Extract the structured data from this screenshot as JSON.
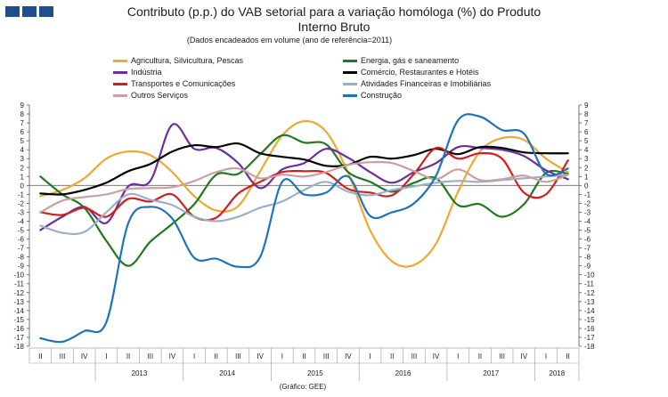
{
  "header": {
    "title_line1": "Contributo (p.p.) do VAB setorial para a variação homóloga (%) do Produto",
    "title_line2": "Interno Bruto",
    "subtitle": "(Dados encadeados em volume (ano de referência=2011)"
  },
  "source": "(Gráfico: GEE)",
  "chart_data": {
    "type": "line",
    "title": "Contributo (p.p.) do VAB setorial para a variação homóloga (%) do Produto Interno Bruto",
    "ylim": [
      -18,
      9
    ],
    "yticks": [
      9,
      8,
      7,
      6,
      5,
      4,
      3,
      2,
      1,
      0,
      -1,
      -2,
      -3,
      -4,
      -5,
      -6,
      -7,
      -8,
      -9,
      -10,
      -11,
      -12,
      -13,
      -14,
      -15,
      -16,
      -17,
      -18
    ],
    "quarters": [
      "II",
      "III",
      "IV",
      "I",
      "II",
      "III",
      "IV",
      "I",
      "II",
      "III",
      "IV",
      "I",
      "II",
      "III",
      "IV",
      "I",
      "II",
      "III",
      "IV",
      "I",
      "II",
      "III",
      "IV",
      "I",
      "II"
    ],
    "years": [
      {
        "label": "2013",
        "start": 3,
        "count": 4
      },
      {
        "label": "2014",
        "start": 7,
        "count": 4
      },
      {
        "label": "2015",
        "start": 11,
        "count": 4
      },
      {
        "label": "2016",
        "start": 15,
        "count": 4
      },
      {
        "label": "2017",
        "start": 19,
        "count": 4
      },
      {
        "label": "2018",
        "start": 23,
        "count": 2
      }
    ],
    "series": [
      {
        "name": "Agricultura, Silvicultura, Pescas",
        "color": "#f0a830",
        "values": [
          -1.2,
          -0.5,
          0.8,
          3.0,
          3.8,
          3.4,
          1.5,
          -1.2,
          -2.8,
          -2.3,
          1.6,
          5.6,
          7.2,
          6.0,
          1.4,
          -5.0,
          -8.5,
          -8.9,
          -6.5,
          -0.7,
          3.8,
          5.3,
          5.1,
          3.0,
          1.5
        ]
      },
      {
        "name": "Energia, gás e saneamento",
        "color": "#1f7a1f",
        "values": [
          1.0,
          -1.0,
          -2.5,
          -6.2,
          -9.0,
          -6.3,
          -4.3,
          -2.1,
          1.2,
          1.3,
          3.5,
          5.6,
          4.8,
          4.6,
          1.5,
          0.4,
          -0.7,
          0.3,
          0.8,
          -2.2,
          -2.1,
          -3.5,
          -2.1,
          1.4,
          1.3
        ]
      },
      {
        "name": "Indústria",
        "color": "#6b2fa0",
        "values": [
          -5.0,
          -3.5,
          -2.4,
          -4.2,
          -0.1,
          0.5,
          6.8,
          4.1,
          4.2,
          2.5,
          -0.3,
          1.8,
          2.5,
          4.1,
          3.1,
          1.5,
          0.3,
          1.5,
          2.5,
          4.3,
          4.2,
          4.0,
          3.3,
          1.7,
          0.7
        ]
      },
      {
        "name": "Comércio, Restaurantes e Hotéis",
        "color": "#000000",
        "values": [
          -0.9,
          -1.0,
          -0.5,
          0.3,
          1.6,
          2.4,
          3.8,
          4.5,
          4.3,
          4.7,
          3.6,
          3.2,
          2.9,
          2.2,
          2.3,
          3.2,
          3.0,
          3.4,
          4.1,
          3.5,
          4.3,
          4.2,
          3.7,
          3.6,
          3.6
        ]
      },
      {
        "name": "Transportes e Comunicações",
        "color": "#d41e1e",
        "values": [
          -3.0,
          -3.3,
          -2.5,
          -3.5,
          -1.5,
          -1.8,
          -1.0,
          -3.5,
          -3.6,
          -0.9,
          0.4,
          1.5,
          1.6,
          1.4,
          -0.4,
          -0.8,
          -1.1,
          1.3,
          4.2,
          3.0,
          3.6,
          3.0,
          -0.8,
          -1.0,
          2.8
        ]
      },
      {
        "name": "Atividades Financeiras e Imobiliárias",
        "color": "#9ab0c8",
        "values": [
          -4.5,
          -5.3,
          -5.2,
          -3.0,
          -1.0,
          -1.6,
          -2.2,
          -3.5,
          -4.0,
          -3.5,
          -2.5,
          -1.8,
          -0.5,
          0.4,
          -0.7,
          -1.1,
          -0.5,
          -0.1,
          0.3,
          0.5,
          0.4,
          0.6,
          0.8,
          1.0,
          1.2
        ]
      },
      {
        "name": "Outros Serviços",
        "color": "#c8a0a0",
        "values": [
          -3.0,
          -1.7,
          -1.3,
          -1.0,
          -0.4,
          -0.3,
          -0.2,
          0.5,
          1.5,
          1.9,
          0.8,
          1.2,
          1.0,
          1.5,
          2.3,
          2.6,
          2.5,
          1.6,
          0.7,
          1.8,
          0.6,
          0.7,
          1.1,
          0.4,
          1.2
        ]
      },
      {
        "name": "Construção",
        "color": "#1f73b8",
        "values": [
          -17.1,
          -17.5,
          -16.3,
          -15.3,
          -4.2,
          -2.4,
          -3.7,
          -8.1,
          -8.2,
          -9.1,
          -8.0,
          0.4,
          -1.0,
          -0.8,
          1.0,
          -3.4,
          -3.0,
          -2.0,
          1.1,
          7.3,
          7.7,
          6.2,
          5.8,
          1.3,
          1.9
        ]
      }
    ]
  }
}
